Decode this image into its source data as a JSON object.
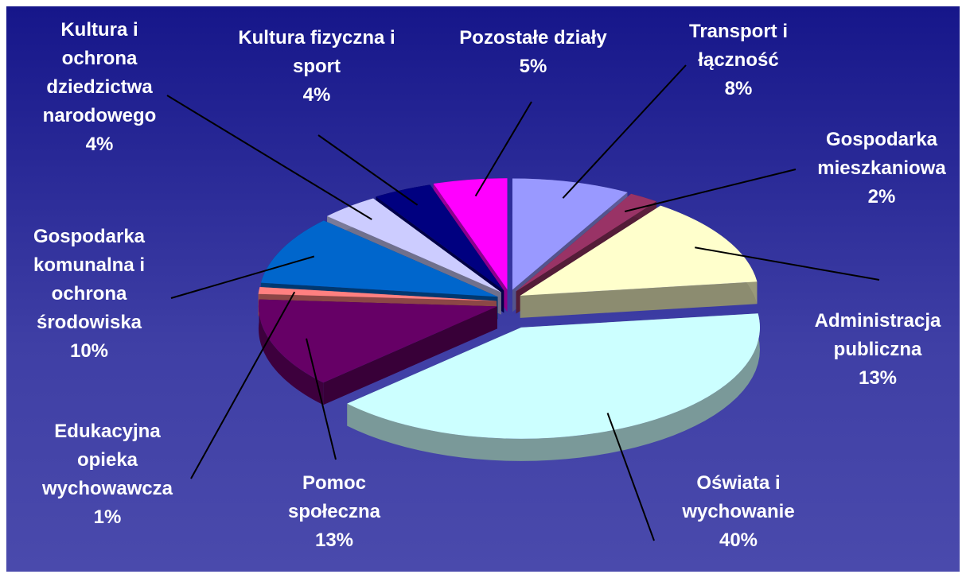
{
  "chart_data": {
    "type": "pie3d",
    "categories": [
      "Transport i łączność",
      "Gospodarka mieszkaniowa",
      "Administracja publiczna",
      "Oświata i wychowanie",
      "Pomoc społeczna",
      "Edukacyjna opieka wychowawcza",
      "Gospodarka komunalna i ochrona środowiska",
      "Kultura i ochrona dziedzictwa narodowego",
      "Kultura fizyczna i sport",
      "Pozostałe działy"
    ],
    "values": [
      8,
      2,
      13,
      40,
      13,
      1,
      10,
      4,
      4,
      5
    ],
    "value_labels": [
      "8%",
      "2%",
      "13%",
      "40%",
      "13%",
      "1%",
      "10%",
      "4%",
      "4%",
      "5%"
    ],
    "colors": [
      "#9999ff",
      "#993366",
      "#ffffcc",
      "#ccffff",
      "#660066",
      "#ff8080",
      "#0066cc",
      "#ccccff",
      "#000080",
      "#ff00ff"
    ]
  }
}
